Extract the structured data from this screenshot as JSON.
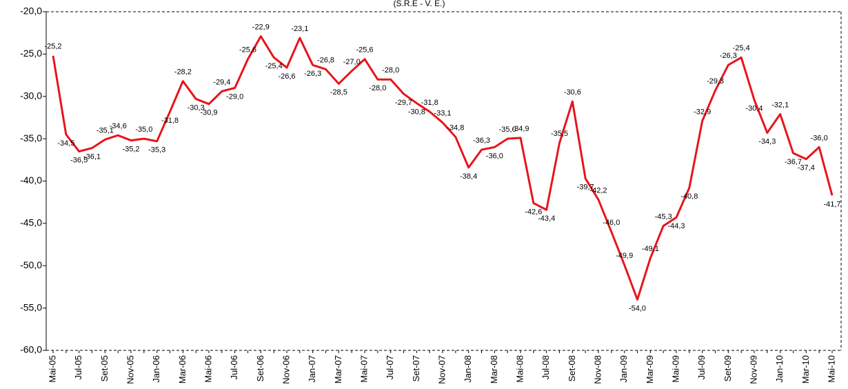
{
  "chart_data": {
    "type": "line",
    "title": "(S.R.E - V. E.)",
    "categories": [
      "Mai-05",
      null,
      "Jul-05",
      null,
      "Set-05",
      null,
      "Nov-05",
      null,
      "Jan-06",
      null,
      "Mar-06",
      null,
      "Mai-06",
      null,
      "Jul-06",
      null,
      "Set-06",
      null,
      "Nov-06",
      null,
      "Jan-07",
      null,
      "Mar-07",
      null,
      "Mai-07",
      null,
      "Jul-07",
      null,
      "Set-07",
      null,
      "Nov-07",
      null,
      "Jan-08",
      null,
      "Mar-08",
      null,
      "Mai-08",
      null,
      "Jul-08",
      null,
      "Set-08",
      null,
      "Nov-08",
      null,
      "Jan-09",
      null,
      "Mar-09",
      null,
      "Mai-09",
      null,
      "Jul-09",
      null,
      "Set-09",
      null,
      "Nov-09",
      null,
      "Jan-10",
      null,
      "Mar-10",
      null,
      "Mai-10"
    ],
    "values": [
      -25.2,
      -34.5,
      -36.5,
      -36.1,
      -35.1,
      -34.6,
      -35.2,
      -35.0,
      -35.3,
      -31.8,
      -28.2,
      -30.3,
      -30.9,
      -29.4,
      -29.0,
      -25.6,
      -22.9,
      -25.4,
      -26.6,
      -23.1,
      -26.3,
      -26.8,
      -28.5,
      -27.0,
      -25.6,
      -28.0,
      -28.0,
      -29.7,
      -30.8,
      -31.8,
      -33.1,
      -34.8,
      -38.4,
      -36.3,
      -36.0,
      -35.0,
      -34.9,
      -42.6,
      -43.4,
      -35.5,
      -30.6,
      -39.7,
      -42.2,
      -46.0,
      -49.9,
      -54.0,
      -49.1,
      -45.3,
      -44.3,
      -40.8,
      -32.9,
      -29.3,
      -26.3,
      -25.4,
      -30.4,
      -34.3,
      -32.1,
      -36.7,
      -37.4,
      -36.0,
      -41.7
    ],
    "value_labels": [
      "-25,2",
      "-34,5",
      "-36,5",
      "-36,1",
      "-35,1",
      "-34,6",
      "-35,2",
      "-35,0",
      "-35,3",
      "-31,8",
      "-28,2",
      "-30,3",
      "-30,9",
      "-29,4",
      "-29,0",
      "-25,6",
      "-22,9",
      "-25,4",
      "-26,6",
      "-23,1",
      "-26,3",
      "-26,8",
      "-28,5",
      "-27,0",
      "-25,6",
      "-28,0",
      "-28,0",
      "-29,7",
      "-30,8",
      "-31,8",
      "-33,1",
      "-34,8",
      "-38,4",
      "-36,3",
      "-36,0",
      "-35,0",
      "-34,9",
      "-42,6",
      "-43,4",
      "-35,5",
      "-30,6",
      "-39,7",
      "-42,2",
      "-46,0",
      "-49,9",
      "-54,0",
      "-49,1",
      "-45,3",
      "-44,3",
      "-40,8",
      "-32,9",
      "-29,3",
      "-26,3",
      "-25,4",
      "-30,4",
      "-34,3",
      "-32,1",
      "-36,7",
      "-37,4",
      "-36,0",
      "-41,7"
    ],
    "color": "#e8141b",
    "ylim": [
      -60,
      -20
    ],
    "yticks": [
      {
        "value": -60,
        "label": "-60,0"
      },
      {
        "value": -55,
        "label": "-55,0"
      },
      {
        "value": -50,
        "label": "-50,0"
      },
      {
        "value": -45,
        "label": "-45,0"
      },
      {
        "value": -40,
        "label": "-40,0"
      },
      {
        "value": -35,
        "label": "-35,0"
      },
      {
        "value": -30,
        "label": "-30,0"
      },
      {
        "value": -25,
        "label": "-25,0"
      },
      {
        "value": -20,
        "label": "-20,0"
      }
    ]
  }
}
